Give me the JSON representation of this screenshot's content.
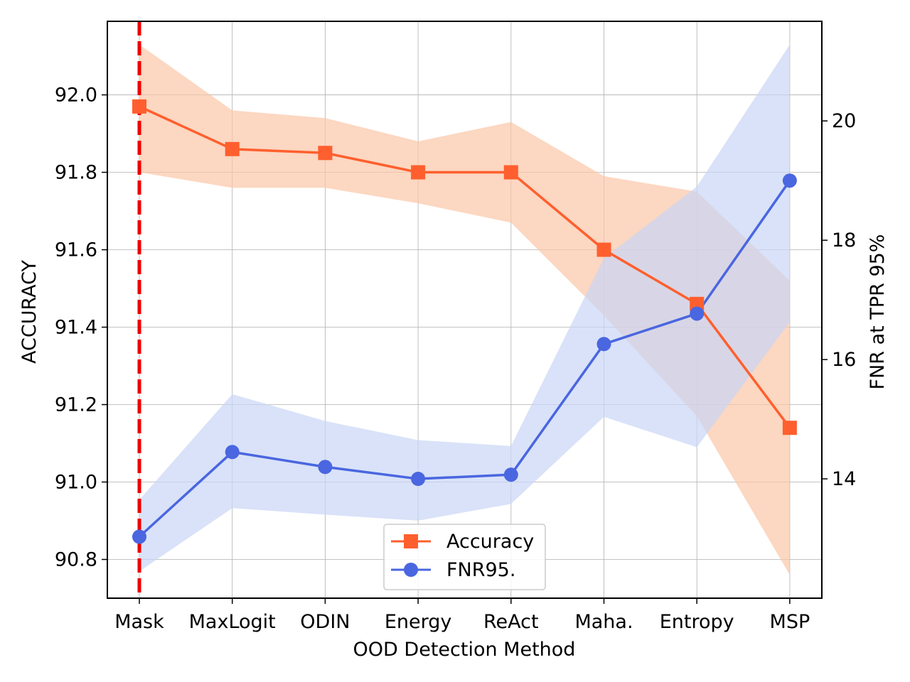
{
  "chart_data": {
    "type": "line",
    "xlabel": "OOD Detection Method",
    "ylabel_left": "ACCURACY",
    "ylabel_right": "FNR at TPR 95%",
    "categories": [
      "Mask",
      "MaxLogit",
      "ODIN",
      "Energy",
      "ReAct",
      "Maha.",
      "Entropy",
      "MSP"
    ],
    "left_axis": {
      "range": [
        90.7,
        92.19
      ],
      "ticks": [
        "90.8",
        "91.0",
        "91.2",
        "91.4",
        "91.6",
        "91.8",
        "92.0"
      ]
    },
    "right_axis": {
      "range": [
        12.0,
        21.67
      ],
      "ticks": [
        "14",
        "16",
        "18",
        "20"
      ]
    },
    "series": [
      {
        "name": "Accuracy",
        "axis": "left",
        "color": "#ff5f2e",
        "band_color": "#fbc6a6",
        "marker": "square",
        "values": [
          91.97,
          91.86,
          91.85,
          91.8,
          91.8,
          91.6,
          91.46,
          91.14
        ],
        "upper": [
          92.13,
          91.96,
          91.94,
          91.88,
          91.93,
          91.79,
          91.75,
          91.52
        ],
        "lower": [
          91.8,
          91.76,
          91.76,
          91.72,
          91.67,
          91.43,
          91.17,
          90.76
        ]
      },
      {
        "name": "FNR95.",
        "axis": "right",
        "color": "#4a66e0",
        "band_color": "#c9d5f5",
        "marker": "circle",
        "values": [
          13.03,
          14.45,
          14.2,
          14.0,
          14.07,
          16.26,
          16.77,
          19.0
        ],
        "upper": [
          13.65,
          15.42,
          14.97,
          14.65,
          14.55,
          17.7,
          18.9,
          21.28
        ],
        "lower": [
          12.45,
          13.51,
          13.4,
          13.3,
          13.58,
          15.04,
          14.53,
          16.63
        ]
      }
    ],
    "vertical_marker": {
      "category": "Mask",
      "color": "#ee0000",
      "style": "dashed"
    },
    "legend": {
      "position": "lower-center",
      "entries": [
        "Accuracy",
        "FNR95."
      ]
    },
    "grid": true
  }
}
